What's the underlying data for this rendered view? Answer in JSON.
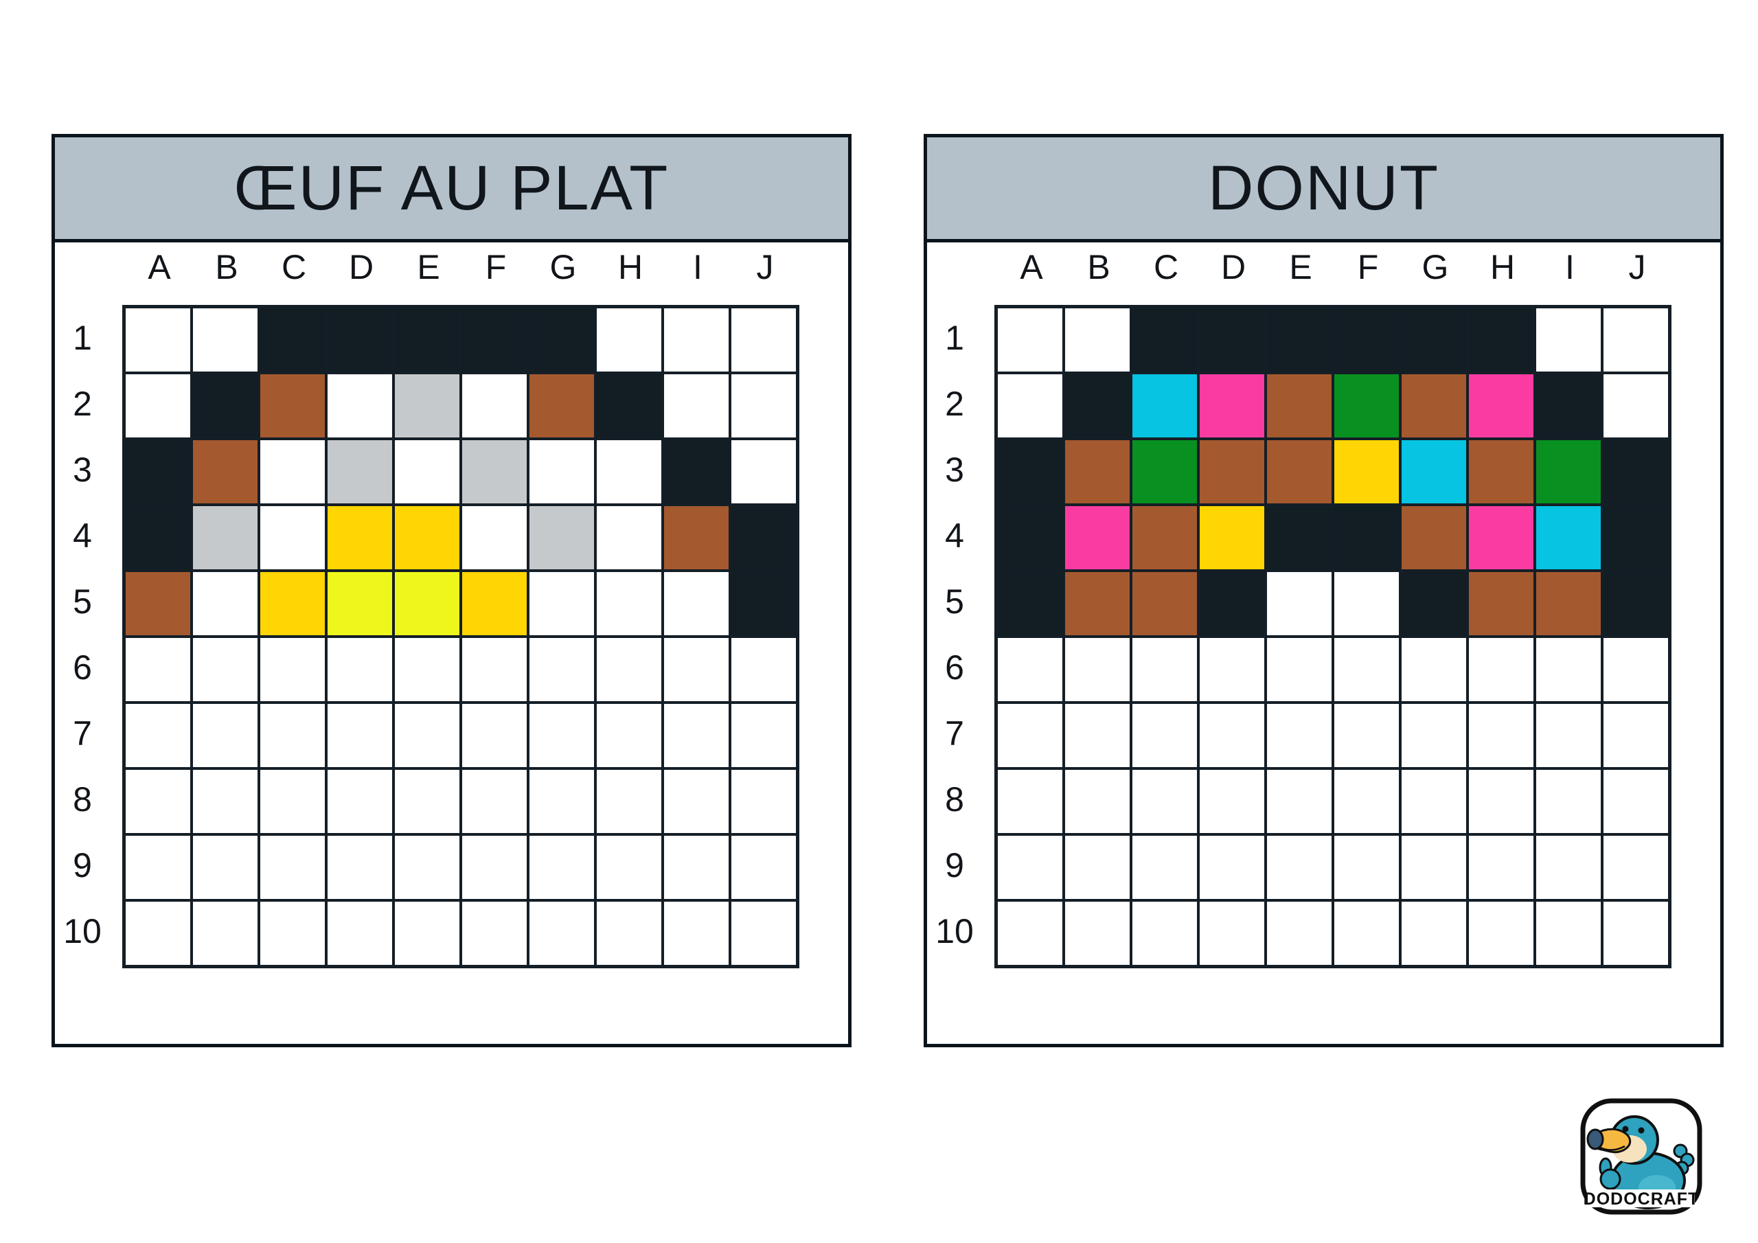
{
  "theme": {
    "page_bg": "#FFFFFF",
    "header_bar": "#B4C1CB",
    "border_col": "#0C141B",
    "grid_line": "#141E26",
    "title_col": "#10161B",
    "label_col": "#111519"
  },
  "palette": {
    "_": "#FFFFFF",
    "K": "#131D24",
    "B": "#A5592F",
    "S": "#C6C9CC",
    "Y": "#FFD503",
    "L": "#EEF71C",
    "C": "#06C4E2",
    "P": "#FA3CA2",
    "G": "#089120"
  },
  "panels": [
    {
      "title": "ŒUF AU PLAT",
      "columns": [
        "A",
        "B",
        "C",
        "D",
        "E",
        "F",
        "G",
        "H",
        "I",
        "J"
      ],
      "rows": [
        "1",
        "2",
        "3",
        "4",
        "5",
        "6",
        "7",
        "8",
        "9",
        "10"
      ],
      "pixels": [
        "__KKKKK___",
        "_KB_S_BK__",
        "KB_S_S__K_",
        "KS_YY_S_BK",
        "B_YLLY___K",
        "__________",
        "__________",
        "__________",
        "__________",
        "__________"
      ]
    },
    {
      "title": "DONUT",
      "columns": [
        "A",
        "B",
        "C",
        "D",
        "E",
        "F",
        "G",
        "H",
        "I",
        "J"
      ],
      "rows": [
        "1",
        "2",
        "3",
        "4",
        "5",
        "6",
        "7",
        "8",
        "9",
        "10"
      ],
      "pixels": [
        "__KKKKKK__",
        "_KCPBGBPK_",
        "KBGBBYCBGK",
        "KPBYKKBPCK",
        "KBBK__KBBK",
        "__________",
        "__________",
        "__________",
        "__________",
        "__________"
      ]
    }
  ],
  "logo": {
    "text": "DODOCRAFT",
    "colors": {
      "body": "#2EA2BE",
      "body_light": "#49B7CE",
      "face": "#F6E2BC",
      "beak": "#F5B942",
      "beak_tip": "#3A5A79",
      "outline": "#101010",
      "text": "#0E0E0E"
    }
  }
}
